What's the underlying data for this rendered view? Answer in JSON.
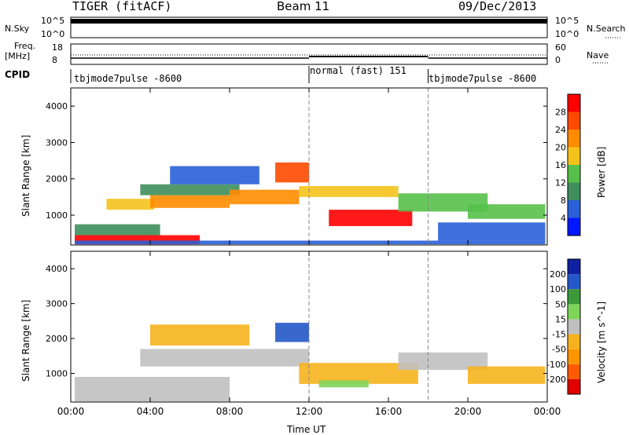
{
  "header": {
    "radar": "TIGER (fitACF)",
    "beam": "Beam 11",
    "date": "09/Dec/2013"
  },
  "strip_labels": {
    "nsky": "N.Sky",
    "nsky_ticks": [
      "10^5",
      "10^0"
    ],
    "nsearch": "N.Search",
    "nsearch_ticks": [
      "10^5",
      "10^0"
    ],
    "freq": "Freq.",
    "freq_unit": "[MHz]",
    "freq_ticks": [
      "18",
      "8"
    ],
    "nave": "Nave",
    "nave_ticks": [
      "60",
      "0"
    ],
    "cpid": "CPID"
  },
  "cpid_segments": [
    {
      "label": "tbjmode7pulse -8600",
      "start_hour": 0
    },
    {
      "label": "normal (fast) 151",
      "start_hour": 12
    },
    {
      "label": "tbjmode7pulse -8600",
      "start_hour": 18
    }
  ],
  "chart_data": [
    {
      "type": "heatmap",
      "name": "power",
      "ylabel": "Slant Range [km]",
      "xlabel": "Time UT",
      "x_ticks": [
        "00:00",
        "04:00",
        "08:00",
        "12:00",
        "16:00",
        "20:00",
        "00:00"
      ],
      "x_range_hours": [
        0,
        24
      ],
      "y_ticks": [
        "1000",
        "2000",
        "3000",
        "4000"
      ],
      "y_range_km": [
        180,
        4500
      ],
      "colorbar_label": "Power [dB]",
      "colorbar_ticks": [
        "4",
        "8",
        "12",
        "16",
        "20",
        "24",
        "28"
      ],
      "colorbar_range": [
        0,
        32
      ],
      "colors": [
        "#0018ff",
        "#2a5fd8",
        "#3f8e5c",
        "#57c04a",
        "#f4c31b",
        "#ff8c00",
        "#ff4a00",
        "#ff0000"
      ],
      "regions": [
        {
          "t0": 0.2,
          "t1": 6.5,
          "r0": 200,
          "r1": 450,
          "level": 30
        },
        {
          "t0": 0.2,
          "t1": 4.5,
          "r0": 450,
          "r1": 750,
          "level": 10
        },
        {
          "t0": 1.8,
          "t1": 4.2,
          "r0": 1150,
          "r1": 1450,
          "level": 18
        },
        {
          "t0": 4.0,
          "t1": 8.0,
          "r0": 1200,
          "r1": 1550,
          "level": 22
        },
        {
          "t0": 3.5,
          "t1": 8.5,
          "r0": 1550,
          "r1": 1850,
          "level": 8
        },
        {
          "t0": 5.0,
          "t1": 9.5,
          "r0": 1850,
          "r1": 2350,
          "level": 6
        },
        {
          "t0": 8.0,
          "t1": 11.5,
          "r0": 1300,
          "r1": 1700,
          "level": 20
        },
        {
          "t0": 10.3,
          "t1": 12.0,
          "r0": 1900,
          "r1": 2450,
          "level": 26
        },
        {
          "t0": 11.5,
          "t1": 16.5,
          "r0": 1500,
          "r1": 1800,
          "level": 16
        },
        {
          "t0": 13.0,
          "t1": 17.2,
          "r0": 700,
          "r1": 1150,
          "level": 30
        },
        {
          "t0": 16.5,
          "t1": 21.0,
          "r0": 1100,
          "r1": 1600,
          "level": 14
        },
        {
          "t0": 20.0,
          "t1": 23.9,
          "r0": 900,
          "r1": 1300,
          "level": 12
        },
        {
          "t0": 0.2,
          "t1": 23.9,
          "r0": 200,
          "r1": 300,
          "level": 6
        },
        {
          "t0": 18.5,
          "t1": 23.9,
          "r0": 300,
          "r1": 800,
          "level": 6
        }
      ]
    },
    {
      "type": "heatmap",
      "name": "velocity",
      "ylabel": "Slant Range [km]",
      "xlabel": "Time UT",
      "x_ticks": [
        "00:00",
        "04:00",
        "08:00",
        "12:00",
        "16:00",
        "20:00",
        "00:00"
      ],
      "x_range_hours": [
        0,
        24
      ],
      "y_ticks": [
        "1000",
        "2000",
        "3000",
        "4000"
      ],
      "y_range_km": [
        180,
        4500
      ],
      "colorbar_label": "Velocity [m s^-1]",
      "colorbar_ticks": [
        "200",
        "100",
        "50",
        "15",
        "-15",
        "-50",
        "-100",
        "-200"
      ],
      "colorbar_range": [
        -250,
        250
      ],
      "colors": [
        "#e00000",
        "#ff5a00",
        "#ff9500",
        "#f6b21d",
        "#c0c0c0",
        "#7fd45a",
        "#3a9a3a",
        "#2458c8",
        "#1020a0"
      ],
      "regions": [
        {
          "t0": 0.2,
          "t1": 8.0,
          "r0": 200,
          "r1": 900,
          "level": 0
        },
        {
          "t0": 3.5,
          "t1": 12.0,
          "r0": 1200,
          "r1": 1700,
          "level": 0
        },
        {
          "t0": 4.0,
          "t1": 9.0,
          "r0": 1800,
          "r1": 2400,
          "level": -30
        },
        {
          "t0": 10.3,
          "t1": 12.0,
          "r0": 1900,
          "r1": 2450,
          "level": 180
        },
        {
          "t0": 11.5,
          "t1": 17.5,
          "r0": 700,
          "r1": 1300,
          "level": -40
        },
        {
          "t0": 12.5,
          "t1": 15.0,
          "r0": 600,
          "r1": 800,
          "level": 60
        },
        {
          "t0": 16.5,
          "t1": 21.0,
          "r0": 1100,
          "r1": 1600,
          "level": 0
        },
        {
          "t0": 20.0,
          "t1": 23.9,
          "r0": 700,
          "r1": 1200,
          "level": -60
        }
      ]
    }
  ]
}
